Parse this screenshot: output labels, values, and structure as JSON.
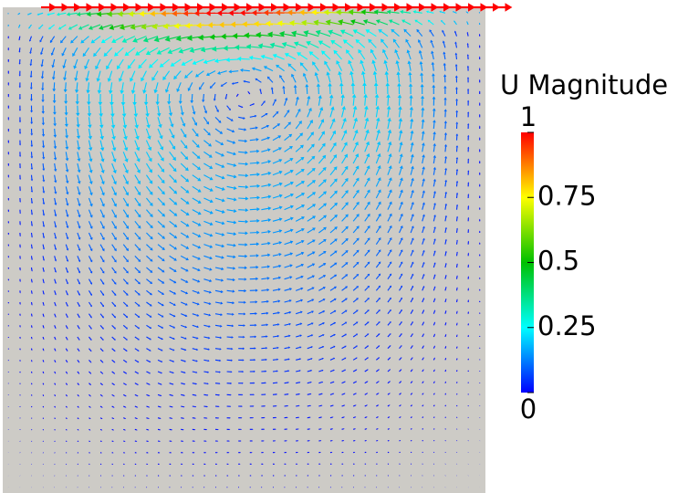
{
  "legend": {
    "title": "U Magnitude",
    "range": [
      0,
      1
    ],
    "ticks": [
      0,
      0.25,
      0.5,
      0.75,
      1
    ],
    "colors": [
      "#0000ff",
      "#00ffff",
      "#00c000",
      "#ffff00",
      "#ff0000"
    ]
  }
}
